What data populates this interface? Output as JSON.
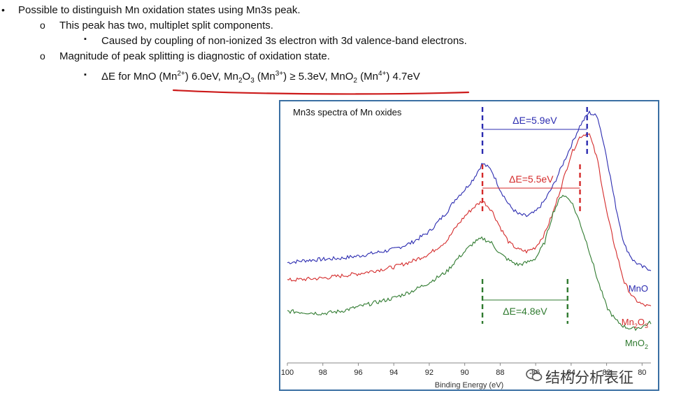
{
  "slide": {
    "bullets": [
      {
        "marker": "•",
        "text": "Possible to distinguish Mn oxidation states using Mn3s peak."
      },
      {
        "marker": "o",
        "text": "This peak has two, multiplet split components."
      },
      {
        "marker": "▪",
        "text": "Caused by coupling of non-ionized 3s electron with 3d valence-band electrons."
      },
      {
        "marker": "o",
        "text": "Magnitude of peak splitting is diagnostic of oxidation state."
      }
    ],
    "formula": {
      "marker": "▪",
      "p1": "ΔE for MnO (Mn",
      "s1": "2+",
      "p2": ") 6.0eV, Mn",
      "b1": "2",
      "p3": "O",
      "b2": "3",
      "p4": " (Mn",
      "s2": "3+",
      "p5": ") ≥ 5.3eV, MnO",
      "b3": "2",
      "p6": " (Mn",
      "s3": "4+",
      "p7": ") 4.7eV"
    },
    "underline_color": "#cc1a1a"
  },
  "chart_data": {
    "type": "line",
    "title": "Mn3s spectra of Mn oxides",
    "xlabel": "Binding Energy (eV)",
    "ylabel": "",
    "x_reversed": true,
    "xlim": [
      100,
      79.5
    ],
    "x_ticks": [
      "100",
      "98",
      "96",
      "94",
      "92",
      "90",
      "88",
      "86",
      "84",
      "82",
      "80"
    ],
    "series": [
      {
        "name": "MnO",
        "color": "#2b2bb0",
        "x": [
          100,
          99,
          98,
          97,
          96,
          95,
          94,
          93,
          92,
          91,
          90.5,
          90,
          89.5,
          89,
          88.5,
          88,
          87.5,
          87,
          86.5,
          86,
          85.5,
          85,
          84.5,
          84,
          83.5,
          83,
          82.5,
          82,
          81.5,
          81,
          80.5,
          80,
          79.5
        ],
        "y": [
          0.34,
          0.35,
          0.355,
          0.36,
          0.37,
          0.385,
          0.4,
          0.43,
          0.48,
          0.57,
          0.63,
          0.67,
          0.72,
          0.79,
          0.76,
          0.67,
          0.6,
          0.56,
          0.55,
          0.57,
          0.62,
          0.69,
          0.78,
          0.87,
          0.96,
          1.02,
          1.0,
          0.82,
          0.6,
          0.42,
          0.35,
          0.32,
          0.31
        ]
      },
      {
        "name": "Mn2O3",
        "name_base": "Mn",
        "name_sub1": "2",
        "name_mid": "O",
        "name_sub2": "3",
        "color": "#d42a2a",
        "x": [
          100,
          99,
          98,
          97,
          96,
          95,
          94,
          93,
          92,
          91,
          90.5,
          90,
          89.5,
          89,
          88.5,
          88,
          87.5,
          87,
          86.5,
          86,
          85.5,
          85,
          84.5,
          84,
          83.5,
          83,
          82.5,
          82,
          81.5,
          81,
          80.5,
          80,
          79.5
        ],
        "y": [
          0.26,
          0.265,
          0.27,
          0.28,
          0.29,
          0.305,
          0.32,
          0.345,
          0.38,
          0.44,
          0.5,
          0.55,
          0.59,
          0.62,
          0.58,
          0.5,
          0.43,
          0.4,
          0.39,
          0.41,
          0.47,
          0.57,
          0.7,
          0.83,
          0.91,
          0.93,
          0.8,
          0.57,
          0.4,
          0.25,
          0.18,
          0.15,
          0.14
        ]
      },
      {
        "name": "MnO2",
        "name_base": "MnO",
        "name_sub1": "2",
        "color": "#2f7a2f",
        "x": [
          100,
          99,
          98,
          97,
          96,
          95,
          94,
          93,
          92,
          91,
          90.5,
          90,
          89.5,
          89,
          88.5,
          88,
          87.5,
          87,
          86.5,
          86,
          85.5,
          85,
          84.5,
          84,
          83.5,
          83,
          82.5,
          82,
          81.5,
          81,
          80.5,
          80,
          79.5
        ],
        "y": [
          0.12,
          0.115,
          0.11,
          0.12,
          0.14,
          0.16,
          0.18,
          0.21,
          0.25,
          0.3,
          0.35,
          0.39,
          0.43,
          0.45,
          0.43,
          0.38,
          0.35,
          0.33,
          0.34,
          0.36,
          0.43,
          0.57,
          0.65,
          0.62,
          0.52,
          0.4,
          0.26,
          0.14,
          0.08,
          0.05,
          0.04,
          0.05,
          0.07
        ]
      }
    ],
    "annotations": [
      {
        "label": "ΔE=5.9eV",
        "color": "#2b2bb0",
        "x1": 89.0,
        "x2": 83.1
      },
      {
        "label": "ΔE=5.5eV",
        "color": "#d42a2a",
        "x1": 89.0,
        "x2": 83.5
      },
      {
        "label": "ΔE=4.8eV",
        "color": "#2f7a2f",
        "x1": 89.0,
        "x2": 84.2
      }
    ]
  },
  "watermark": {
    "text": "结构分析表征",
    "icon": "wechat-icon"
  }
}
